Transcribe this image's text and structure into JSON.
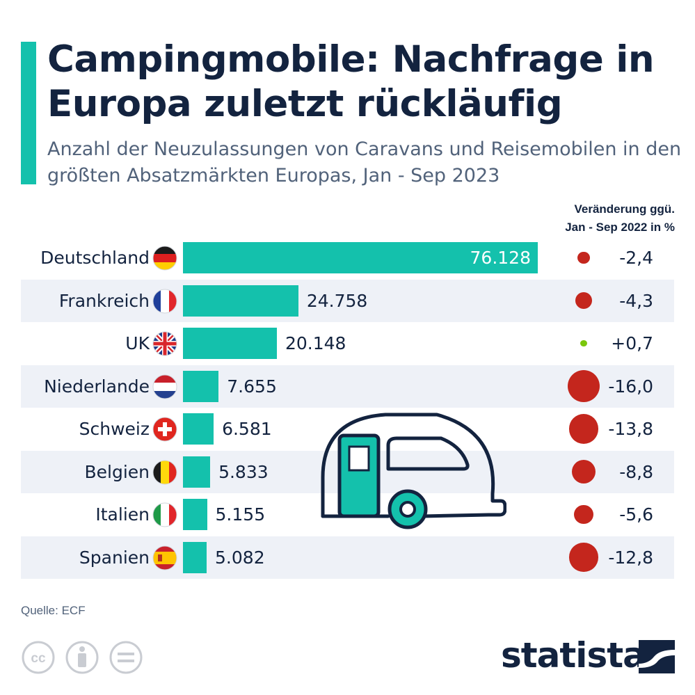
{
  "header": {
    "title": "Campingmobile: Nachfrage in Europa zuletzt rückläufig",
    "subtitle": "Anzahl der Neuzulassungen von Caravans und Reisemobilen in den größten Absatzmärkten Europas, Jan - Sep 2023",
    "change_header_line1": "Veränderung ggü.",
    "change_header_line2": "Jan - Sep 2022 in %"
  },
  "chart_data": {
    "type": "bar",
    "orientation": "horizontal",
    "categories": [
      "Deutschland",
      "Frankreich",
      "UK",
      "Niederlande",
      "Schweiz",
      "Belgien",
      "Italien",
      "Spanien"
    ],
    "series": [
      {
        "values": [
          76128,
          24758,
          20148,
          7655,
          6581,
          5833,
          5155,
          5082
        ]
      }
    ],
    "value_labels": [
      "76.128",
      "24.758",
      "20.148",
      "7.655",
      "6.581",
      "5.833",
      "5.155",
      "5.082"
    ],
    "change_values": [
      -2.4,
      -4.3,
      0.7,
      -16.0,
      -13.8,
      -8.8,
      -5.6,
      -12.8
    ],
    "change_labels": [
      "-2,4",
      "-4,3",
      "+0,7",
      "-16,0",
      "-13,8",
      "-8,8",
      "-5,6",
      "-12,8"
    ],
    "xlim": [
      0,
      76128
    ],
    "bar_color": "#14c1ac",
    "negative_color": "#c4261d",
    "positive_color": "#7ac70c",
    "grid": false
  },
  "flags": [
    "germany-flag-icon",
    "france-flag-icon",
    "uk-flag-icon",
    "netherlands-flag-icon",
    "switzerland-flag-icon",
    "belgium-flag-icon",
    "italy-flag-icon",
    "spain-flag-icon"
  ],
  "footer": {
    "source": "Quelle: ECF",
    "brand": "statista",
    "license_icons": [
      "cc-icon",
      "by-icon",
      "nd-icon"
    ]
  },
  "colors": {
    "accent": "#14c1ac",
    "title": "#13233f",
    "row_shade": "#eef1f7"
  }
}
